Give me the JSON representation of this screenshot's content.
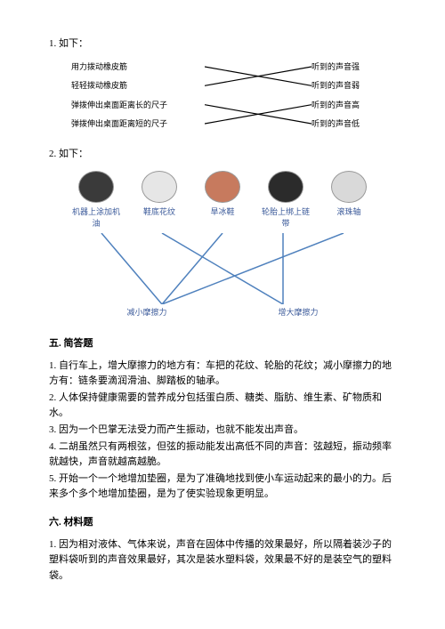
{
  "q1": {
    "label": "1. 如下：",
    "left": [
      "用力拨动橡皮筋",
      "轻轻拨动橡皮筋",
      "弹拨伸出桌面距离长的尺子",
      "弹拨伸出桌面距离短的尺子"
    ],
    "right": [
      "听到的声音强",
      "听到的声音弱",
      "听到的声音高",
      "听到的声音低"
    ],
    "edges": [
      [
        0,
        1
      ],
      [
        1,
        0
      ],
      [
        2,
        3
      ],
      [
        3,
        2
      ]
    ],
    "line_color": "#000000",
    "line_width": 1.2
  },
  "q2": {
    "label": "2. 如下：",
    "top": [
      {
        "label": "机器上涂加机油",
        "bg": "#3a3a3a"
      },
      {
        "label": "鞋底花纹",
        "bg": "#e6e6e6"
      },
      {
        "label": "旱冰鞋",
        "bg": "#c77a5e"
      },
      {
        "label": "轮胎上绑上链带",
        "bg": "#2b2b2b"
      },
      {
        "label": "滚珠轴",
        "bg": "#d9d9d9"
      }
    ],
    "bottom": [
      "减小摩擦力",
      "增大摩擦力"
    ],
    "edges": [
      [
        0,
        0
      ],
      [
        1,
        1
      ],
      [
        2,
        0
      ],
      [
        3,
        1
      ],
      [
        4,
        0
      ]
    ],
    "line_color": "#4f81bd",
    "line_width": 1.5
  },
  "section5": {
    "heading": "五. 简答题",
    "items": [
      "1. 自行车上，增大摩擦力的地方有：车把的花纹、轮胎的花纹；减小摩擦力的地方有：链条要滴润滑油、脚踏板的轴承。",
      "2. 人体保持健康需要的营养成分包括蛋白质、糖类、脂肪、维生素、矿物质和水。",
      "3. 因为一个巴掌无法受力而产生振动，也就不能发出声音。",
      "4. 二胡虽然只有两根弦，但弦的振动能发出高低不同的声音：弦越短，振动频率就越快，声音就越高越脆。",
      "5. 开始一个一个地增加垫圈，是为了准确地找到使小车运动起来的最小的力。后来多个多个地增加垫圈，是为了使实验现象更明显。"
    ]
  },
  "section6": {
    "heading": "六. 材料题",
    "items": [
      "1. 因为相对液体、气体来说，声音在固体中传播的效果最好，所以隔着装沙子的塑料袋听到的声音效果最好，其次是装水塑料袋，效果最不好的是装空气的塑料袋。"
    ]
  }
}
